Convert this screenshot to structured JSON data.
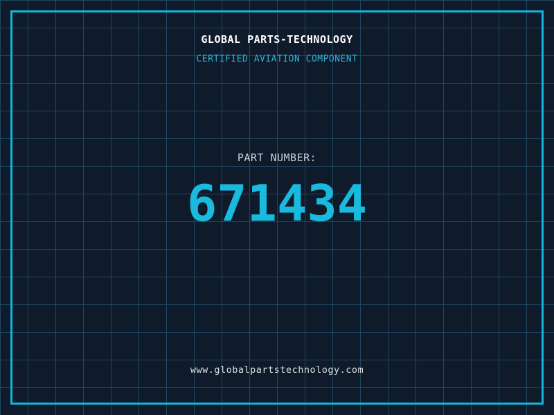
{
  "header": {
    "title": "GLOBAL PARTS-TECHNOLOGY",
    "subtitle": "CERTIFIED AVIATION COMPONENT"
  },
  "part": {
    "label": "PART NUMBER:",
    "number": "671434"
  },
  "footer": {
    "website": "www.globalpartstechnology.com"
  },
  "colors": {
    "background": "#0f1a2b",
    "grid_line": "#1d4a60",
    "frame_border": "#10b6dc",
    "title_text": "#ffffff",
    "subtitle_text": "#2ab4d6",
    "label_text": "#c9d1d9",
    "number_text": "#1ab9de",
    "footer_text": "#d9dee3"
  }
}
